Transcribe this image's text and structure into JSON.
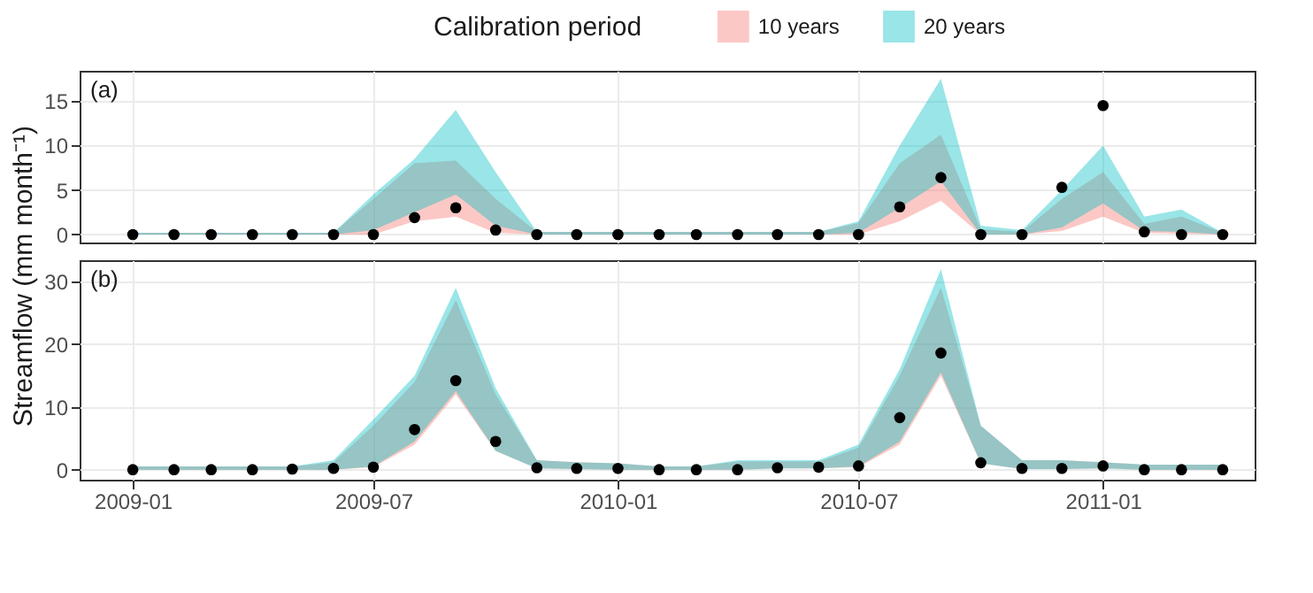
{
  "chart_data": [
    {
      "type": "area",
      "title": "(a)",
      "legend_title": "Calibration period",
      "legend": "top",
      "grid": true,
      "tick_labels": "y",
      "x": [
        "2009-01",
        "2009-02",
        "2009-03",
        "2009-04",
        "2009-05",
        "2009-06",
        "2009-07",
        "2009-08",
        "2009-09",
        "2009-10",
        "2009-11",
        "2009-12",
        "2010-01",
        "2010-02",
        "2010-03",
        "2010-04",
        "2010-05",
        "2010-06",
        "2010-07",
        "2010-08",
        "2010-09",
        "2010-10",
        "2010-11",
        "2010-12",
        "2011-01",
        "2011-02",
        "2011-03",
        "2011-04"
      ],
      "xlim": [
        "2008-11-22",
        "2011-04-25"
      ],
      "xticks": [
        "2009-01",
        "2009-07",
        "2010-01",
        "2010-07",
        "2011-01"
      ],
      "ylim": [
        -0.9,
        18.4
      ],
      "yticks": [
        0,
        5,
        10,
        15
      ],
      "series": [
        {
          "name": "10 years",
          "color": "#f8766d",
          "values": [
            null,
            null,
            null,
            null,
            null,
            null,
            null,
            null,
            null,
            null,
            null,
            null,
            null,
            null,
            null,
            null,
            null,
            null,
            null,
            null,
            null,
            null,
            null,
            null,
            null,
            null,
            null,
            null
          ],
          "lower": [
            0,
            0,
            0,
            0,
            0,
            0,
            0,
            1.5,
            2,
            0.2,
            0,
            0,
            0,
            0,
            0,
            0,
            0,
            0,
            0,
            1.5,
            3.8,
            0,
            0,
            0.4,
            2,
            0.2,
            0.1,
            0
          ],
          "upper": [
            0.2,
            0.2,
            0.2,
            0.2,
            0.2,
            0.2,
            4,
            8,
            8.3,
            4,
            0.3,
            0.3,
            0.3,
            0.3,
            0.3,
            0.3,
            0.3,
            0.3,
            1.3,
            8,
            11.2,
            0.6,
            0.3,
            4,
            7,
            1.2,
            2,
            0.2
          ]
        },
        {
          "name": "20 years",
          "color": "#00bfc4",
          "values": [
            null,
            null,
            null,
            null,
            null,
            null,
            null,
            null,
            null,
            null,
            null,
            null,
            null,
            null,
            null,
            null,
            null,
            null,
            null,
            null,
            null,
            null,
            null,
            null,
            null,
            null,
            null,
            null
          ],
          "lower": [
            0,
            0,
            0,
            0,
            0,
            0,
            0.5,
            2.5,
            4.5,
            1,
            0,
            0,
            0,
            0,
            0,
            0,
            0,
            0,
            0.2,
            3,
            6,
            0,
            0,
            0.8,
            3.5,
            0.4,
            0.3,
            0
          ],
          "upper": [
            0.2,
            0.2,
            0.2,
            0.2,
            0.2,
            0.2,
            4.5,
            8.5,
            14,
            7,
            0.3,
            0.3,
            0.3,
            0.3,
            0.3,
            0.3,
            0.3,
            0.3,
            1.5,
            10,
            17.5,
            1,
            0.5,
            5,
            10,
            2,
            2.8,
            0.2
          ]
        },
        {
          "type": "scatter",
          "color": "#000000",
          "marker": "circle",
          "values": [
            0,
            0,
            0,
            0,
            0,
            0,
            0,
            1.9,
            3,
            0.5,
            0,
            0,
            0,
            0,
            0,
            0,
            0,
            0,
            0,
            3.1,
            6.4,
            0,
            0,
            5.3,
            14.5,
            0.3,
            0,
            0
          ]
        }
      ]
    },
    {
      "type": "area",
      "title": "(b)",
      "ylabel": "Streamflow (mm month⁻¹)",
      "grid": true,
      "x": [
        "2009-01",
        "2009-02",
        "2009-03",
        "2009-04",
        "2009-05",
        "2009-06",
        "2009-07",
        "2009-08",
        "2009-09",
        "2009-10",
        "2009-11",
        "2009-12",
        "2010-01",
        "2010-02",
        "2010-03",
        "2010-04",
        "2010-05",
        "2010-06",
        "2010-07",
        "2010-08",
        "2010-09",
        "2010-10",
        "2010-11",
        "2010-12",
        "2011-01",
        "2011-02",
        "2011-03",
        "2011-04"
      ],
      "xlim": [
        "2008-11-22",
        "2011-04-25"
      ],
      "xticks": [
        "2009-01",
        "2009-07",
        "2010-01",
        "2010-07",
        "2011-01"
      ],
      "ylim": [
        -1.6,
        33.4
      ],
      "yticks": [
        0,
        10,
        20,
        30
      ],
      "series": [
        {
          "color": "#f8766d",
          "values": [
            null,
            null,
            null,
            null,
            null,
            null,
            null,
            null,
            null,
            null,
            null,
            null,
            null,
            null,
            null,
            null,
            null,
            null,
            null,
            null,
            null,
            null,
            null,
            null,
            null,
            null,
            null,
            null
          ],
          "lower": [
            0,
            0,
            0,
            0,
            0,
            0,
            0.4,
            4,
            12,
            3,
            0.2,
            0.1,
            0,
            0,
            0,
            0,
            0.2,
            0.2,
            0.4,
            4,
            15,
            1,
            0.1,
            0.1,
            0.2,
            0,
            0,
            0
          ],
          "upper": [
            0.5,
            0.5,
            0.5,
            0.5,
            0.5,
            1.2,
            7,
            14,
            27,
            12,
            1.5,
            1.2,
            1,
            0.5,
            0.5,
            1.3,
            1.3,
            1.3,
            3.5,
            15,
            29,
            7,
            1.5,
            1.5,
            1.2,
            0.8,
            0.8,
            0.8
          ]
        },
        {
          "color": "#00bfc4",
          "values": [
            null,
            null,
            null,
            null,
            null,
            null,
            null,
            null,
            null,
            null,
            null,
            null,
            null,
            null,
            null,
            null,
            null,
            null,
            null,
            null,
            null,
            null,
            null,
            null,
            null,
            null,
            null,
            null
          ],
          "lower": [
            0,
            0,
            0,
            0,
            0,
            0,
            0.5,
            4.5,
            12.5,
            3,
            0.2,
            0.1,
            0,
            0,
            0,
            0,
            0.2,
            0.2,
            0.5,
            4.5,
            15.5,
            1,
            0.1,
            0.1,
            0.2,
            0,
            0,
            0
          ],
          "upper": [
            0.5,
            0.5,
            0.5,
            0.5,
            0.5,
            1.5,
            8,
            15,
            29,
            13,
            1.5,
            1.2,
            1,
            0.5,
            0.5,
            1.5,
            1.5,
            1.5,
            4,
            16,
            32,
            7,
            1.5,
            1.5,
            1.2,
            0.8,
            0.8,
            0.8
          ]
        },
        {
          "type": "scatter",
          "color": "#000000",
          "marker": "circle",
          "values": [
            0,
            0,
            0,
            0,
            0.1,
            0.2,
            0.4,
            6.4,
            14.2,
            4.5,
            0.3,
            0.2,
            0.2,
            0,
            0,
            0,
            0.3,
            0.4,
            0.6,
            8.3,
            18.6,
            1.1,
            0.2,
            0.2,
            0.6,
            0,
            0,
            0
          ]
        }
      ]
    }
  ]
}
